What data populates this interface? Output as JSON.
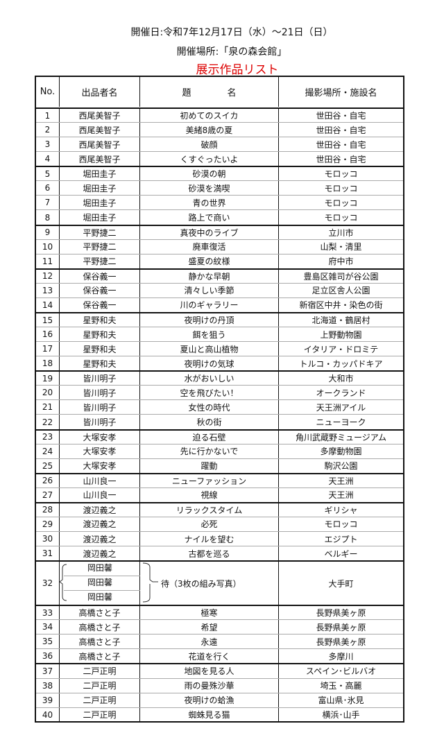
{
  "header": {
    "date": "開催日:令和7年12月17日（水）～21日（日）",
    "venue": "開催場所:「泉の森会館」",
    "title": "展示作品リスト"
  },
  "columns": [
    "No.",
    "出品者名",
    "題　　　　名",
    "撮影場所・施設名"
  ],
  "rows": [
    [
      "1",
      "西尾美智子",
      "初めてのスイカ",
      "世田谷・自宅"
    ],
    [
      "2",
      "西尾美智子",
      "美緒8歳の夏",
      "世田谷・自宅"
    ],
    [
      "3",
      "西尾美智子",
      "破顔",
      "世田谷・自宅"
    ],
    [
      "4",
      "西尾美智子",
      "くすぐったいよ",
      "世田谷・自宅"
    ],
    [
      "5",
      "堀田圭子",
      "砂漠の朝",
      "モロッコ"
    ],
    [
      "6",
      "堀田圭子",
      "砂漠を満喫",
      "モロッコ"
    ],
    [
      "7",
      "堀田圭子",
      "青の世界",
      "モロッコ"
    ],
    [
      "8",
      "堀田圭子",
      "路上で商い",
      "モロッコ"
    ],
    [
      "9",
      "平野捷二",
      "真夜中のライブ",
      "立川市"
    ],
    [
      "10",
      "平野捷二",
      "廃車復活",
      "山梨・清里"
    ],
    [
      "11",
      "平野捷二",
      "盛夏の紋様",
      "府中市"
    ],
    [
      "12",
      "保谷義一",
      "静かな早朝",
      "豊島区雑司が谷公園"
    ],
    [
      "13",
      "保谷義一",
      "清々しい季節",
      "足立区舎人公園"
    ],
    [
      "14",
      "保谷義一",
      "川のギャラリー",
      "新宿区中井・染色の街"
    ],
    [
      "15",
      "星野和夫",
      "夜明けの丹頂",
      "北海道・鶴居村"
    ],
    [
      "16",
      "星野和夫",
      "餌を狙う",
      "上野動物園"
    ],
    [
      "17",
      "星野和夫",
      "夏山と高山植物",
      "イタリア・ドロミテ"
    ],
    [
      "18",
      "星野和夫",
      "夜明けの気球",
      "トルコ・カッパドキア"
    ],
    [
      "19",
      "皆川明子",
      "水がおいしい",
      "大和市"
    ],
    [
      "20",
      "皆川明子",
      "空を飛びたい！",
      "オークランド"
    ],
    [
      "21",
      "皆川明子",
      "女性の時代",
      "天王洲アイル"
    ],
    [
      "22",
      "皆川明子",
      "秋の街",
      "ニューヨーク"
    ],
    [
      "23",
      "大塚安孝",
      "迫る石壁",
      "角川武蔵野ミュージアム"
    ],
    [
      "24",
      "大塚安孝",
      "先に行かないで",
      "多摩動物園"
    ],
    [
      "25",
      "大塚安孝",
      "躍動",
      "駒沢公園"
    ],
    [
      "26",
      "山川良一",
      "ニューファッション",
      "天王洲"
    ],
    [
      "27",
      "山川良一",
      "視線",
      "天王洲"
    ],
    [
      "28",
      "渡辺義之",
      "リラックスタイム",
      "ギリシャ"
    ],
    [
      "29",
      "渡辺義之",
      "必死",
      "モロッコ"
    ],
    [
      "30",
      "渡辺義之",
      "ナイルを望む",
      "エジプト"
    ],
    [
      "31",
      "渡辺義之",
      "古都を巡る",
      "ベルギー"
    ]
  ],
  "group_row": {
    "no": "32",
    "names": [
      "岡田馨",
      "岡田馨",
      "岡田馨"
    ],
    "title": "待（3枚の組み写真）",
    "place": "大手町"
  },
  "rows2": [
    [
      "33",
      "高橋さと子",
      "極寒",
      "長野県美ヶ原"
    ],
    [
      "34",
      "高橋さと子",
      "希望",
      "長野県美ヶ原"
    ],
    [
      "35",
      "高橋さと子",
      "永遠",
      "長野県美ヶ原"
    ],
    [
      "36",
      "高橋さと子",
      "花道を行く",
      "多摩川"
    ],
    [
      "37",
      "二戸正明",
      "地図を見る人",
      "スペイン･ビルバオ"
    ],
    [
      "38",
      "二戸正明",
      "雨の曼殊沙華",
      "埼玉・高麗"
    ],
    [
      "39",
      "二戸正明",
      "夜明けの蛤漁",
      "富山県･氷見"
    ],
    [
      "40",
      "二戸正明",
      "蜘蛛見る猫",
      "横浜･山手"
    ]
  ],
  "title_color": "#dd0000"
}
